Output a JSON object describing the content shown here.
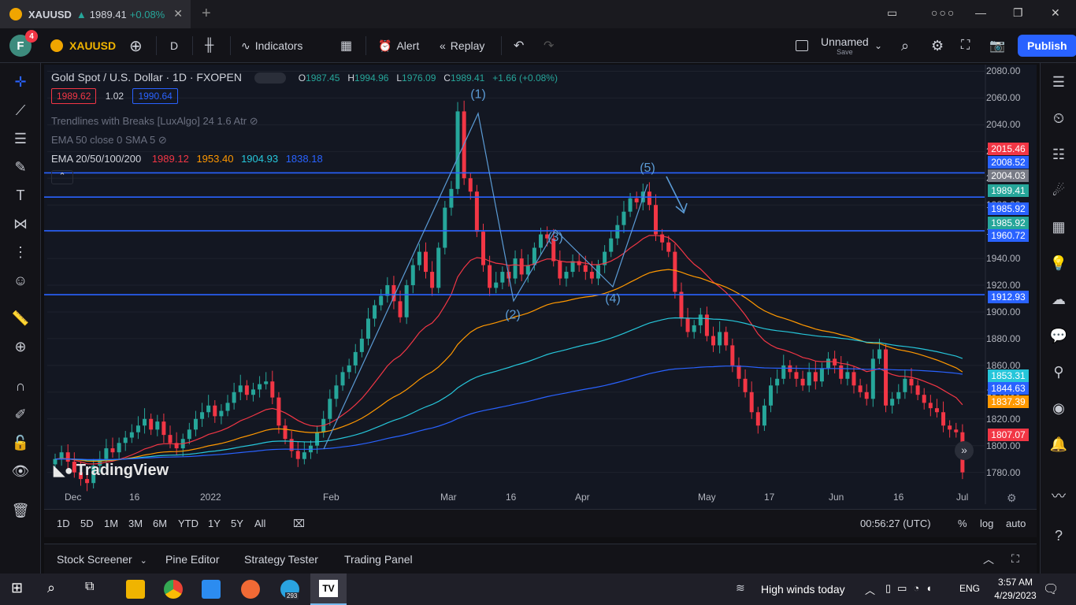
{
  "tab": {
    "symbol": "XAUUSD",
    "arrow": "▲",
    "price": "1989.41",
    "change": "+0.08%"
  },
  "toolbar": {
    "avatar_letter": "F",
    "badge": "4",
    "symbol": "XAUUSD",
    "interval": "D",
    "indicators": "Indicators",
    "alert": "Alert",
    "replay": "Replay",
    "layout_name": "Unnamed",
    "layout_sub": "Save",
    "publish": "Publish"
  },
  "legend": {
    "title": "Gold Spot / U.S. Dollar · 1D · FXOPEN",
    "o_label": "O",
    "o": "1987.45",
    "h_label": "H",
    "h": "1994.96",
    "l_label": "L",
    "l": "1976.09",
    "c_label": "C",
    "c": "1989.41",
    "chg": "+1.66 (+0.08%)",
    "bid": "1989.62",
    "spread": "1.02",
    "ask": "1990.64",
    "ind1": "Trendlines with Breaks [LuxAlgo] 24 1.6 Atr",
    "ind2": "EMA 50 close 0 SMA 5",
    "ind3_label": "EMA 20/50/100/200",
    "ind3_v1": "1989.12",
    "ind3_v2": "1953.40",
    "ind3_v3": "1904.93",
    "ind3_v4": "1838.18"
  },
  "colors": {
    "up": "#26a69a",
    "down": "#f23645",
    "ema20": "#f23645",
    "ema50": "#ff9800",
    "ema100": "#26c6da",
    "ema200": "#2962ff",
    "hline": "#2962ff",
    "wave": "#5b9bd5"
  },
  "chart_data": {
    "type": "candlestick",
    "ylim": [
      1768,
      2085
    ],
    "y_ticks": [
      "2080.00",
      "2060.00",
      "2040.00",
      "2020.00",
      "2000.00",
      "1980.00",
      "1960.00",
      "1940.00",
      "1920.00",
      "1900.00",
      "1880.00",
      "1860.00",
      "1840.00",
      "1820.00",
      "1800.00",
      "1780.00"
    ],
    "x_ticks": [
      "Dec",
      "16",
      "2022",
      "Feb",
      "Mar",
      "16",
      "Apr",
      "May",
      "17",
      "Jun",
      "16",
      "Jul"
    ],
    "hlines": [
      2004.03,
      1985.92,
      1960.72,
      1912.93
    ],
    "price_labels": [
      {
        "v": "2015.46",
        "color": "#f23645"
      },
      {
        "v": "2008.52",
        "color": "#2962ff"
      },
      {
        "v": "2004.03",
        "color": "#787b86"
      },
      {
        "v": "1989.41",
        "color": "#26a69a"
      },
      {
        "v": "1985.92",
        "color": "#2962ff"
      },
      {
        "v": "1985.92",
        "color": "#26a69a"
      },
      {
        "v": "1960.72",
        "color": "#2962ff"
      },
      {
        "v": "1912.93",
        "color": "#2962ff"
      },
      {
        "v": "1853.31",
        "color": "#26c6da"
      },
      {
        "v": "1844.63",
        "color": "#2962ff"
      },
      {
        "v": "1837.39",
        "color": "#ff9800"
      },
      {
        "v": "1807.07",
        "color": "#f23645"
      }
    ],
    "waves": [
      {
        "label": "(1)",
        "x": "Mar",
        "y": 2060
      },
      {
        "label": "(2)",
        "x": "16",
        "y": 1895
      },
      {
        "label": "(3)",
        "x": "Mar-end",
        "y": 1953
      },
      {
        "label": "(4)",
        "x": "Apr",
        "y": 1907
      },
      {
        "label": "(5)",
        "x": "Apr-mid",
        "y": 2005
      }
    ],
    "closes": [
      1790,
      1795,
      1788,
      1780,
      1775,
      1772,
      1785,
      1790,
      1798,
      1795,
      1802,
      1806,
      1810,
      1815,
      1820,
      1812,
      1818,
      1808,
      1802,
      1798,
      1805,
      1812,
      1820,
      1825,
      1830,
      1822,
      1826,
      1832,
      1840,
      1845,
      1838,
      1842,
      1846,
      1848,
      1836,
      1815,
      1805,
      1796,
      1790,
      1795,
      1800,
      1810,
      1820,
      1835,
      1845,
      1855,
      1860,
      1870,
      1880,
      1895,
      1905,
      1912,
      1920,
      1908,
      1896,
      1920,
      1935,
      1945,
      1930,
      1918,
      1948,
      1978,
      1992,
      2050,
      2000,
      1990,
      1960,
      1935,
      1918,
      1922,
      1930,
      1925,
      1940,
      1928,
      1935,
      1948,
      1958,
      1955,
      1938,
      1925,
      1930,
      1938,
      1935,
      1930,
      1925,
      1935,
      1945,
      1955,
      1965,
      1975,
      1985,
      1982,
      1990,
      1980,
      1958,
      1952,
      1945,
      1915,
      1895,
      1885,
      1890,
      1898,
      1882,
      1875,
      1885,
      1875,
      1860,
      1850,
      1840,
      1825,
      1815,
      1830,
      1845,
      1850,
      1860,
      1855,
      1850,
      1845,
      1855,
      1848,
      1858,
      1865,
      1860,
      1850,
      1855,
      1845,
      1840,
      1835,
      1865,
      1872,
      1830,
      1835,
      1840,
      1850,
      1845,
      1838,
      1832,
      1828,
      1825,
      1815,
      1812,
      1810,
      1780
    ]
  },
  "rangebar": {
    "r1": "1D",
    "r2": "5D",
    "r3": "1M",
    "r4": "3M",
    "r5": "6M",
    "r6": "YTD",
    "r7": "1Y",
    "r8": "5Y",
    "r9": "All",
    "time": "00:56:27 (UTC)",
    "pct": "%",
    "log": "log",
    "auto": "auto"
  },
  "bottom": {
    "t1": "Stock Screener",
    "t2": "Pine Editor",
    "t3": "Strategy Tester",
    "t4": "Trading Panel"
  },
  "watermark": "TradingView",
  "taskbar": {
    "weather": "High winds today",
    "lang": "ENG",
    "time": "3:57 AM",
    "date": "4/29/2023",
    "badge": "293"
  }
}
